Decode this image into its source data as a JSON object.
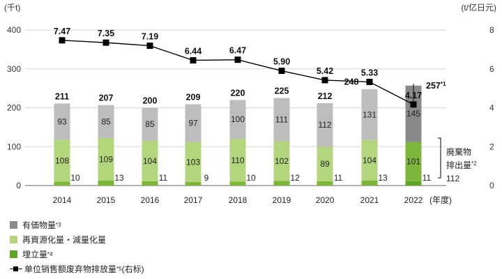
{
  "chart_data": {
    "type": "bar",
    "stacked": true,
    "categories": [
      "2014",
      "2015",
      "2016",
      "2017",
      "2018",
      "2019",
      "2020",
      "2021",
      "2022"
    ],
    "x_unit": "(年度)",
    "y_left": {
      "unit": "(千t)",
      "ylim": [
        0,
        400
      ],
      "ticks": [
        "0",
        "100",
        "200",
        "300",
        "400"
      ]
    },
    "y_right": {
      "unit": "(t/亿日元)",
      "ylim": [
        0,
        8
      ],
      "ticks": [
        "0",
        "2",
        "4",
        "6",
        "8"
      ]
    },
    "series": [
      {
        "name": "埋立量",
        "note": "*4",
        "color": "#7bb636",
        "values": [
          10,
          13,
          11,
          9,
          10,
          12,
          11,
          13,
          11
        ]
      },
      {
        "name": "再資源化量・減量化量",
        "note": "",
        "color": "#b3d67c",
        "values": [
          108,
          109,
          104,
          103,
          110,
          102,
          89,
          104,
          101
        ]
      },
      {
        "name": "有価物量",
        "note": "*3",
        "color": "#bdbdbd",
        "values": [
          93,
          85,
          85,
          97,
          100,
          111,
          112,
          131,
          145
        ]
      }
    ],
    "series_2022_override_colors": [
      "#5fa624",
      "#7cb63c",
      "#8a8a8a"
    ],
    "totals": [
      "211",
      "207",
      "200",
      "209",
      "220",
      "225",
      "212",
      "248",
      "257"
    ],
    "total_2022_label": "257*1",
    "line_series": {
      "name": "单位销售额废弃物排放量",
      "note": "*5",
      "suffix": "(右标)",
      "color": "#000000",
      "values": [
        7.47,
        7.35,
        7.19,
        6.44,
        6.47,
        5.9,
        5.42,
        5.33,
        4.17
      ],
      "labels": [
        "7.47",
        "7.35",
        "7.19",
        "6.44",
        "6.47",
        "5.90",
        "5.42",
        "5.33",
        "4.17"
      ]
    },
    "annotation": {
      "line1": "廃棄物",
      "line2": "排出量",
      "note": "*2",
      "value": "112"
    },
    "grid": true
  },
  "legend": [
    {
      "key": "swatch",
      "color": "#8c8c8c",
      "label": "有価物量",
      "note": "*3"
    },
    {
      "key": "swatch",
      "color": "#b3d67c",
      "label": "再資源化量・減量化量",
      "note": ""
    },
    {
      "key": "swatch",
      "color": "#5fa624",
      "label": "埋立量",
      "note": "*4"
    },
    {
      "key": "line",
      "color": "#000000",
      "label": "单位销售额废弃物排放量",
      "note": "*5",
      "suffix": " (右标)"
    }
  ]
}
